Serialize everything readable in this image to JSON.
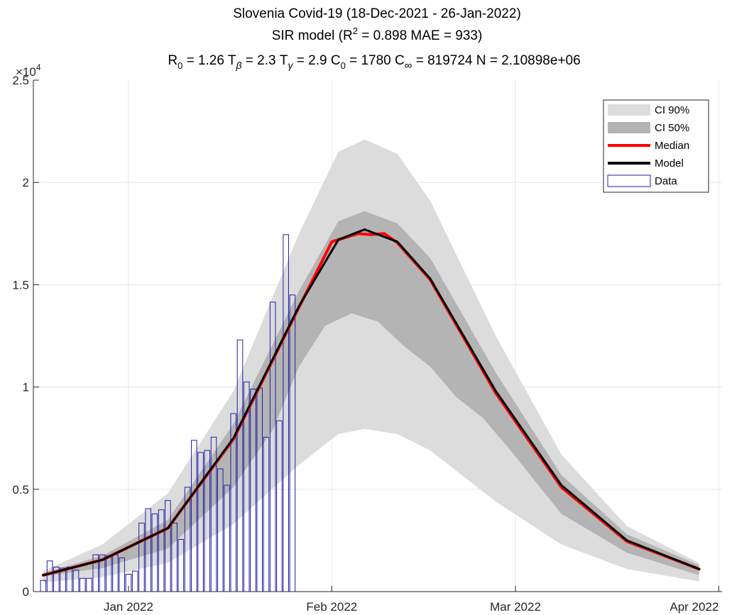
{
  "chart_data": {
    "type": "area",
    "title": "Slovenia Covid-19 (18-Dec-2021 - 26-Jan-2022)",
    "subtitle": "SIR model (R² = 0.898   MAE = 933)",
    "params": {
      "R0": "1.26",
      "Tbeta": "2.3",
      "Tgamma": "2.9",
      "C0": "1780",
      "Cinf": "819724",
      "N": "2.10898e+06"
    },
    "y_multiplier": "×10",
    "y_exponent": "4",
    "ylim": [
      0,
      25000
    ],
    "y_ticks": [
      {
        "value": 0,
        "label": "0"
      },
      {
        "value": 5000,
        "label": "0.5"
      },
      {
        "value": 10000,
        "label": "1"
      },
      {
        "value": 15000,
        "label": "1.5"
      },
      {
        "value": 20000,
        "label": "2"
      },
      {
        "value": 25000,
        "label": "2.5"
      }
    ],
    "x_ticks": [
      {
        "day": 14,
        "label": "Jan 2022"
      },
      {
        "day": 45,
        "label": "Feb 2022"
      },
      {
        "day": 73,
        "label": "Mar 2022"
      },
      {
        "day": 104,
        "label": "Apr 2022"
      }
    ],
    "x_note": "day index counted from 18-Dec-2021",
    "xlim": [
      -0.5,
      104.5
    ],
    "grid": true,
    "legend_position": "top-right",
    "legend": [
      {
        "label": "CI 90%",
        "kind": "patch",
        "color": "#dcdcdc"
      },
      {
        "label": "CI 50%",
        "kind": "patch",
        "color": "#b4b4b4"
      },
      {
        "label": "Median",
        "kind": "line",
        "color": "#ff0000"
      },
      {
        "label": "Model",
        "kind": "line",
        "color": "#000000"
      },
      {
        "label": "Data",
        "kind": "bar",
        "color": "#1f1fa8"
      }
    ],
    "colors": {
      "ci90": "#dcdcdc",
      "ci50": "#b4b4b4",
      "median": "#ff0000",
      "model": "#000000",
      "data_edge": "#1f1fa8",
      "grid": "#e6e6e6",
      "axis": "#262626"
    },
    "data_start_day": 1,
    "data": [
      550,
      1500,
      1200,
      1150,
      1200,
      1050,
      650,
      650,
      1800,
      1800,
      1750,
      1800,
      1650,
      850,
      1000,
      3350,
      4050,
      3800,
      4000,
      4450,
      3350,
      2550,
      5100,
      7400,
      6800,
      6900,
      7550,
      6000,
      5200,
      8700,
      12300,
      10250,
      9900,
      9950,
      7550,
      14150,
      8350,
      17450,
      14500
    ],
    "model_curve": {
      "x": [
        1,
        10,
        20,
        30,
        40,
        46,
        50,
        55,
        60,
        70,
        80,
        90,
        101
      ],
      "y": [
        800,
        1550,
        3100,
        7500,
        13950,
        17200,
        17700,
        17100,
        15300,
        9800,
        5200,
        2500,
        1100
      ]
    },
    "median_curve": {
      "x": [
        1,
        10,
        20,
        30,
        40,
        45,
        47,
        49,
        51,
        53,
        55,
        60,
        70,
        80,
        90,
        101
      ],
      "y": [
        800,
        1550,
        3100,
        7450,
        13900,
        17100,
        17300,
        17500,
        17450,
        17500,
        17050,
        15250,
        9700,
        5100,
        2450,
        1100
      ]
    },
    "ci50_upper": {
      "x": [
        1,
        10,
        20,
        30,
        40,
        46,
        50,
        55,
        60,
        70,
        80,
        90,
        101
      ],
      "y": [
        900,
        1750,
        3500,
        8200,
        14700,
        18100,
        18600,
        18000,
        16300,
        10700,
        5700,
        2800,
        1300
      ]
    },
    "ci50_lower": {
      "x": [
        1,
        10,
        20,
        30,
        36,
        40,
        44,
        48,
        52,
        56,
        60,
        64,
        68,
        72,
        80,
        90,
        101
      ],
      "y": [
        750,
        1150,
        2100,
        5100,
        7900,
        11000,
        13000,
        13600,
        13200,
        12000,
        11000,
        9500,
        8500,
        7000,
        3800,
        1900,
        800
      ]
    },
    "ci90_upper": {
      "x": [
        1,
        10,
        20,
        30,
        40,
        46,
        50,
        55,
        60,
        70,
        80,
        90,
        101
      ],
      "y": [
        1000,
        2300,
        4800,
        9800,
        17500,
        21500,
        22100,
        21400,
        19100,
        12500,
        6700,
        3200,
        1400
      ]
    },
    "ci90_lower": {
      "x": [
        1,
        10,
        20,
        30,
        40,
        46,
        50,
        55,
        60,
        70,
        80,
        90,
        101
      ],
      "y": [
        450,
        700,
        1400,
        3300,
        6200,
        7700,
        7950,
        7700,
        6900,
        4400,
        2300,
        1100,
        500
      ]
    }
  }
}
